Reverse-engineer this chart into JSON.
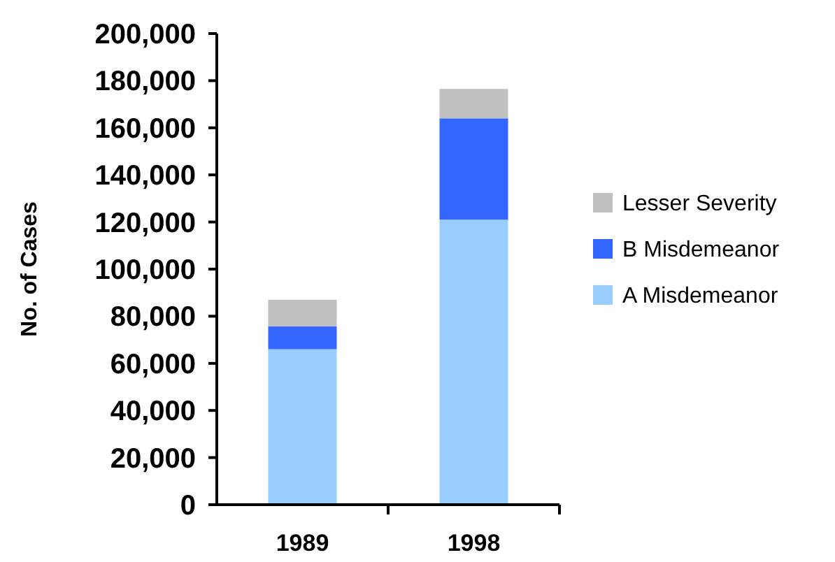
{
  "chart_data": {
    "type": "bar",
    "stacked": true,
    "ylabel": "No. of Cases",
    "categories": [
      "1989",
      "1998"
    ],
    "series": [
      {
        "name": "A Misdemeanor",
        "color": "#99ccff",
        "values": [
          66000,
          121000
        ]
      },
      {
        "name": "B Misdemeanor",
        "color": "#3366ff",
        "values": [
          9700,
          43000
        ]
      },
      {
        "name": "Lesser Severity",
        "color": "#c0c0c0",
        "values": [
          11300,
          12500
        ]
      }
    ],
    "ylim": [
      0,
      200000
    ],
    "yticks": [
      {
        "value": 0,
        "label": "0"
      },
      {
        "value": 20000,
        "label": "20,000"
      },
      {
        "value": 40000,
        "label": "40,000"
      },
      {
        "value": 60000,
        "label": "60,000"
      },
      {
        "value": 80000,
        "label": "80,000"
      },
      {
        "value": 100000,
        "label": "100,000"
      },
      {
        "value": 120000,
        "label": "120,000"
      },
      {
        "value": 140000,
        "label": "140,000"
      },
      {
        "value": 160000,
        "label": "160,000"
      },
      {
        "value": 180000,
        "label": "180,000"
      },
      {
        "value": 200000,
        "label": "200,000"
      }
    ],
    "grid": false,
    "legend": "right"
  }
}
